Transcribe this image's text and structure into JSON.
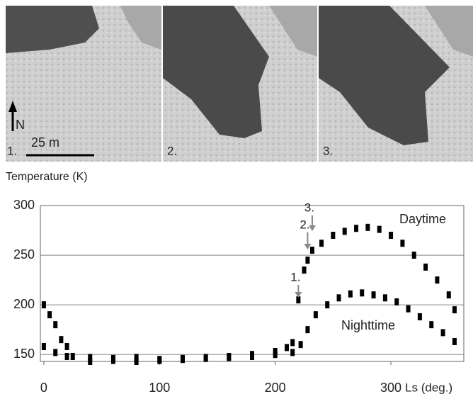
{
  "panels": [
    {
      "label": "1."
    },
    {
      "label": "2."
    },
    {
      "label": "3."
    }
  ],
  "north_label": "N",
  "scale_label": "25 m",
  "chart_data": {
    "type": "scatter",
    "ylabel": "Temperature (K)",
    "xlabel": "Ls (deg.)",
    "xlim": [
      -3,
      363
    ],
    "ylim": [
      143,
      300
    ],
    "xticks": [
      0,
      100,
      200,
      300
    ],
    "yticks": [
      150,
      200,
      250,
      300
    ],
    "grid": true,
    "series": [
      {
        "name": "Daytime",
        "color": "#000000",
        "x": [
          0,
          5,
          10,
          15,
          20,
          25,
          40,
          60,
          80,
          100,
          120,
          140,
          160,
          180,
          200,
          210,
          215,
          220,
          225,
          228,
          232,
          240,
          250,
          260,
          270,
          280,
          290,
          300,
          310,
          320,
          330,
          340,
          350,
          355
        ],
        "values": [
          200,
          190,
          180,
          165,
          158,
          148,
          147,
          146,
          147,
          145,
          146,
          147,
          148,
          150,
          153,
          157,
          162,
          205,
          235,
          245,
          255,
          262,
          270,
          274,
          277,
          278,
          276,
          270,
          262,
          250,
          238,
          225,
          210,
          195
        ]
      },
      {
        "name": "Nighttime",
        "color": "#000000",
        "x": [
          0,
          10,
          20,
          40,
          60,
          80,
          100,
          120,
          140,
          160,
          180,
          200,
          215,
          222,
          228,
          235,
          245,
          255,
          265,
          275,
          285,
          295,
          305,
          315,
          325,
          335,
          345,
          355
        ],
        "values": [
          158,
          152,
          148,
          143,
          144,
          143,
          144,
          145,
          146,
          147,
          148,
          150,
          152,
          160,
          175,
          190,
          200,
          207,
          211,
          212,
          210,
          207,
          203,
          196,
          188,
          180,
          172,
          163
        ]
      }
    ],
    "annotations": [
      {
        "text": "1.",
        "x": 220
      },
      {
        "text": "2.",
        "x": 228
      },
      {
        "text": "3.",
        "x": 232
      }
    ]
  }
}
